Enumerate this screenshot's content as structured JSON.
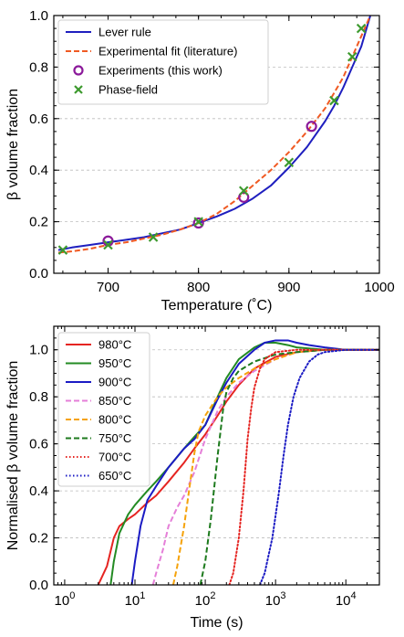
{
  "chart_data": [
    {
      "type": "line",
      "xlabel": "Temperature (˚C)",
      "ylabel": "β volume fraction",
      "xlim": [
        640,
        1000
      ],
      "ylim": [
        0,
        1.0
      ],
      "xticks": [
        700,
        800,
        900,
        1000
      ],
      "yticks": [
        0.0,
        0.2,
        0.4,
        0.6,
        0.8,
        1.0
      ],
      "grid": "horizontal dashed",
      "legend_position": "top-left",
      "series": [
        {
          "name": "Lever rule",
          "kind": "line",
          "style": "solid",
          "color": "#1f1fbf",
          "x": [
            645,
            660,
            680,
            700,
            720,
            740,
            760,
            780,
            800,
            820,
            840,
            860,
            880,
            900,
            920,
            940,
            950,
            960,
            970,
            980,
            990
          ],
          "y": [
            0.09,
            0.1,
            0.11,
            0.12,
            0.13,
            0.14,
            0.155,
            0.17,
            0.195,
            0.22,
            0.25,
            0.29,
            0.34,
            0.41,
            0.49,
            0.59,
            0.65,
            0.72,
            0.8,
            0.88,
            1.0
          ]
        },
        {
          "name": "Experimental fit (literature)",
          "kind": "line",
          "style": "dashed",
          "color": "#f05a23",
          "x": [
            645,
            660,
            680,
            700,
            720,
            740,
            760,
            780,
            800,
            820,
            840,
            860,
            880,
            900,
            920,
            940,
            960,
            980,
            990
          ],
          "y": [
            0.08,
            0.085,
            0.095,
            0.11,
            0.12,
            0.135,
            0.15,
            0.17,
            0.195,
            0.23,
            0.28,
            0.34,
            0.4,
            0.47,
            0.55,
            0.64,
            0.76,
            0.92,
            1.0
          ]
        },
        {
          "name": "Experiments (this work)",
          "kind": "scatter",
          "marker": "circle",
          "color": "#8b1a9a",
          "x": [
            700,
            800,
            850,
            925
          ],
          "y": [
            0.125,
            0.195,
            0.295,
            0.57
          ]
        },
        {
          "name": "Phase-field",
          "kind": "scatter",
          "marker": "x",
          "color": "#3d9a2e",
          "x": [
            650,
            700,
            750,
            800,
            850,
            900,
            950,
            970,
            980
          ],
          "y": [
            0.09,
            0.11,
            0.14,
            0.2,
            0.32,
            0.43,
            0.67,
            0.84,
            0.95
          ]
        }
      ]
    },
    {
      "type": "line",
      "xlabel": "Time (s)",
      "ylabel": "Normalised β volume fraction",
      "xscale": "log",
      "xlim": [
        0.7,
        30000
      ],
      "ylim": [
        0,
        1.1
      ],
      "xticks": [
        1,
        10,
        100,
        1000,
        10000
      ],
      "yticks": [
        0.0,
        0.2,
        0.4,
        0.6,
        0.8,
        1.0
      ],
      "grid": "horizontal dashed",
      "legend_position": "top-left",
      "series": [
        {
          "name": "980°C",
          "style": "solid",
          "color": "#e52421",
          "x": [
            3,
            4,
            5,
            6,
            8,
            10,
            15,
            20,
            30,
            50,
            70,
            100,
            150,
            200,
            300,
            500,
            1000,
            2000,
            5000,
            10000,
            30000
          ],
          "y": [
            0,
            0.08,
            0.2,
            0.25,
            0.28,
            0.3,
            0.35,
            0.38,
            0.44,
            0.52,
            0.58,
            0.64,
            0.72,
            0.78,
            0.85,
            0.92,
            0.97,
            0.99,
            1.0,
            1.0,
            1.0
          ]
        },
        {
          "name": "950°C",
          "style": "solid",
          "color": "#238b23",
          "x": [
            4.5,
            5,
            6,
            8,
            10,
            15,
            20,
            30,
            50,
            70,
            100,
            150,
            200,
            300,
            500,
            700,
            1000,
            1500,
            2000,
            5000,
            10000,
            30000
          ],
          "y": [
            0,
            0.1,
            0.22,
            0.3,
            0.34,
            0.4,
            0.44,
            0.5,
            0.58,
            0.63,
            0.68,
            0.8,
            0.88,
            0.96,
            1.01,
            1.03,
            1.03,
            1.02,
            1.01,
            1.0,
            1.0,
            1.0
          ]
        },
        {
          "name": "900°C",
          "style": "solid",
          "color": "#1b1bc4",
          "x": [
            9,
            10,
            12,
            15,
            20,
            30,
            50,
            70,
            100,
            150,
            200,
            300,
            500,
            700,
            1000,
            1500,
            2000,
            3000,
            5000,
            10000,
            30000
          ],
          "y": [
            0,
            0.1,
            0.25,
            0.36,
            0.42,
            0.5,
            0.58,
            0.62,
            0.68,
            0.79,
            0.86,
            0.94,
            1.0,
            1.03,
            1.04,
            1.04,
            1.03,
            1.02,
            1.01,
            1.0,
            1.0
          ]
        },
        {
          "name": "850°C",
          "style": "dashed",
          "color": "#e57fd8",
          "x": [
            18,
            20,
            25,
            30,
            40,
            50,
            70,
            100,
            150,
            200,
            300,
            500,
            1000,
            2000,
            5000,
            10000,
            30000
          ],
          "y": [
            0,
            0.05,
            0.15,
            0.25,
            0.33,
            0.38,
            0.48,
            0.62,
            0.74,
            0.8,
            0.86,
            0.91,
            0.96,
            0.99,
            1.0,
            1.0,
            1.0
          ]
        },
        {
          "name": "800°C",
          "style": "dashed",
          "color": "#f5a20a",
          "x": [
            35,
            40,
            50,
            60,
            70,
            80,
            100,
            150,
            200,
            300,
            500,
            1000,
            2000,
            5000,
            10000,
            30000
          ],
          "y": [
            0,
            0.08,
            0.25,
            0.42,
            0.56,
            0.65,
            0.72,
            0.8,
            0.84,
            0.88,
            0.92,
            0.96,
            0.99,
            1.0,
            1.0,
            1.0
          ]
        },
        {
          "name": "750°C",
          "style": "dashed",
          "color": "#1d7a1d",
          "x": [
            85,
            100,
            120,
            150,
            180,
            200,
            250,
            300,
            500,
            1000,
            2000,
            5000,
            10000,
            30000
          ],
          "y": [
            0,
            0.1,
            0.28,
            0.55,
            0.75,
            0.82,
            0.88,
            0.91,
            0.95,
            0.98,
            0.99,
            1.0,
            1.0,
            1.0
          ]
        },
        {
          "name": "700°C",
          "style": "dotted",
          "color": "#e52421",
          "x": [
            220,
            250,
            300,
            350,
            400,
            450,
            500,
            600,
            700,
            1000,
            2000,
            5000,
            10000,
            30000
          ],
          "y": [
            0,
            0.05,
            0.2,
            0.4,
            0.62,
            0.75,
            0.84,
            0.92,
            0.96,
            0.99,
            1.0,
            1.0,
            1.0,
            1.0
          ]
        },
        {
          "name": "650°C",
          "style": "dotted",
          "color": "#1b1bc4",
          "x": [
            600,
            700,
            900,
            1100,
            1300,
            1500,
            1800,
            2200,
            3000,
            4000,
            5000,
            10000,
            30000
          ],
          "y": [
            0,
            0.05,
            0.2,
            0.38,
            0.55,
            0.68,
            0.8,
            0.88,
            0.95,
            0.98,
            0.99,
            1.0,
            1.0
          ]
        }
      ]
    }
  ]
}
